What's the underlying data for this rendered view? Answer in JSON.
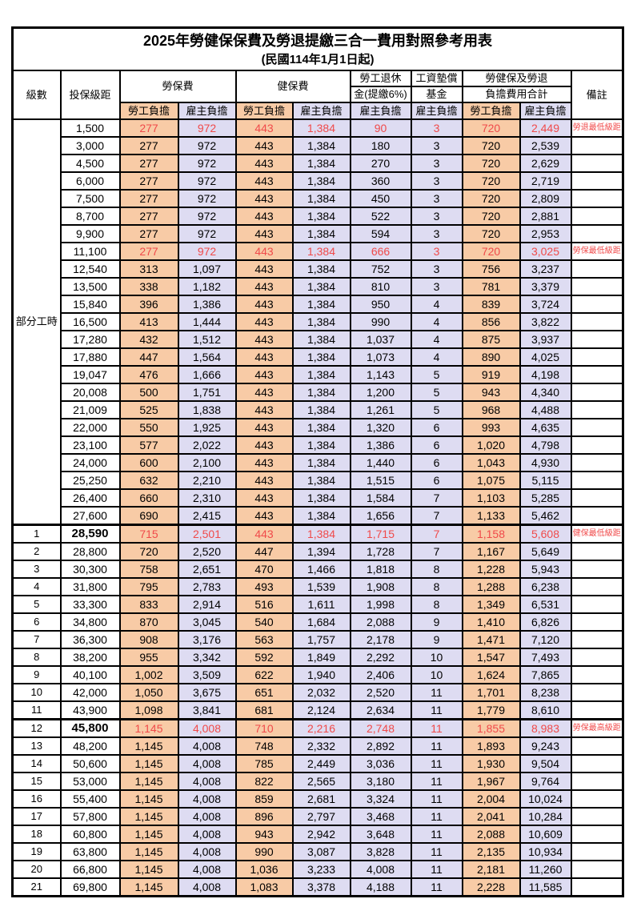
{
  "title": {
    "main": "2025年勞健保保費及勞退提繳三合一費用對照參考用表",
    "sub": "(民國114年1月1日起)"
  },
  "colors": {
    "employee_share_bg": "#F8CBA6",
    "employer_share_bg": "#DEDCF2",
    "highlight_text": "#F04A4A",
    "border": "#000000",
    "background": "#FFFFFF"
  },
  "table": {
    "header": {
      "level": "級數",
      "bracket": "投保級距",
      "labor_fee": "勞保費",
      "health_fee": "健保費",
      "pension_l1": "勞工退休",
      "pension_l2": "金(提繳6%)",
      "wage_fund_l1": "工資墊償",
      "wage_fund_l2": "基金",
      "total_l1": "勞健保及勞退",
      "total_l2": "負擔費用合計",
      "remark": "備註",
      "employee_share": "勞工負擔",
      "employer_share": "雇主負擔"
    },
    "part_time_label": "部分工時",
    "rows": [
      {
        "level": "部分工時",
        "level_rowspan": 23,
        "bracket": "1,500",
        "values": [
          "277",
          "972",
          "443",
          "1,384",
          "90",
          "3",
          "720",
          "2,449"
        ],
        "remark": "勞退最低級距",
        "red": true,
        "bold": false,
        "thick_top": false
      },
      {
        "level": null,
        "bracket": "3,000",
        "values": [
          "277",
          "972",
          "443",
          "1,384",
          "180",
          "3",
          "720",
          "2,539"
        ],
        "remark": "",
        "red": false,
        "bold": false,
        "thick_top": false
      },
      {
        "level": null,
        "bracket": "4,500",
        "values": [
          "277",
          "972",
          "443",
          "1,384",
          "270",
          "3",
          "720",
          "2,629"
        ],
        "remark": "",
        "red": false,
        "bold": false,
        "thick_top": false
      },
      {
        "level": null,
        "bracket": "6,000",
        "values": [
          "277",
          "972",
          "443",
          "1,384",
          "360",
          "3",
          "720",
          "2,719"
        ],
        "remark": "",
        "red": false,
        "bold": false,
        "thick_top": false
      },
      {
        "level": null,
        "bracket": "7,500",
        "values": [
          "277",
          "972",
          "443",
          "1,384",
          "450",
          "3",
          "720",
          "2,809"
        ],
        "remark": "",
        "red": false,
        "bold": false,
        "thick_top": false
      },
      {
        "level": null,
        "bracket": "8,700",
        "values": [
          "277",
          "972",
          "443",
          "1,384",
          "522",
          "3",
          "720",
          "2,881"
        ],
        "remark": "",
        "red": false,
        "bold": false,
        "thick_top": false
      },
      {
        "level": null,
        "bracket": "9,900",
        "values": [
          "277",
          "972",
          "443",
          "1,384",
          "594",
          "3",
          "720",
          "2,953"
        ],
        "remark": "",
        "red": false,
        "bold": false,
        "thick_top": false
      },
      {
        "level": null,
        "bracket": "11,100",
        "values": [
          "277",
          "972",
          "443",
          "1,384",
          "666",
          "3",
          "720",
          "3,025"
        ],
        "remark": "勞保最低級距",
        "red": true,
        "bold": false,
        "thick_top": false
      },
      {
        "level": null,
        "bracket": "12,540",
        "values": [
          "313",
          "1,097",
          "443",
          "1,384",
          "752",
          "3",
          "756",
          "3,237"
        ],
        "remark": "",
        "red": false,
        "bold": false,
        "thick_top": false
      },
      {
        "level": null,
        "bracket": "13,500",
        "values": [
          "338",
          "1,182",
          "443",
          "1,384",
          "810",
          "3",
          "781",
          "3,379"
        ],
        "remark": "",
        "red": false,
        "bold": false,
        "thick_top": false
      },
      {
        "level": null,
        "bracket": "15,840",
        "values": [
          "396",
          "1,386",
          "443",
          "1,384",
          "950",
          "4",
          "839",
          "3,724"
        ],
        "remark": "",
        "red": false,
        "bold": false,
        "thick_top": false
      },
      {
        "level": null,
        "bracket": "16,500",
        "values": [
          "413",
          "1,444",
          "443",
          "1,384",
          "990",
          "4",
          "856",
          "3,822"
        ],
        "remark": "",
        "red": false,
        "bold": false,
        "thick_top": false
      },
      {
        "level": null,
        "bracket": "17,280",
        "values": [
          "432",
          "1,512",
          "443",
          "1,384",
          "1,037",
          "4",
          "875",
          "3,937"
        ],
        "remark": "",
        "red": false,
        "bold": false,
        "thick_top": false
      },
      {
        "level": null,
        "bracket": "17,880",
        "values": [
          "447",
          "1,564",
          "443",
          "1,384",
          "1,073",
          "4",
          "890",
          "4,025"
        ],
        "remark": "",
        "red": false,
        "bold": false,
        "thick_top": false
      },
      {
        "level": null,
        "bracket": "19,047",
        "values": [
          "476",
          "1,666",
          "443",
          "1,384",
          "1,143",
          "5",
          "919",
          "4,198"
        ],
        "remark": "",
        "red": false,
        "bold": false,
        "thick_top": false
      },
      {
        "level": null,
        "bracket": "20,008",
        "values": [
          "500",
          "1,751",
          "443",
          "1,384",
          "1,200",
          "5",
          "943",
          "4,340"
        ],
        "remark": "",
        "red": false,
        "bold": false,
        "thick_top": false
      },
      {
        "level": null,
        "bracket": "21,009",
        "values": [
          "525",
          "1,838",
          "443",
          "1,384",
          "1,261",
          "5",
          "968",
          "4,488"
        ],
        "remark": "",
        "red": false,
        "bold": false,
        "thick_top": false
      },
      {
        "level": null,
        "bracket": "22,000",
        "values": [
          "550",
          "1,925",
          "443",
          "1,384",
          "1,320",
          "6",
          "993",
          "4,635"
        ],
        "remark": "",
        "red": false,
        "bold": false,
        "thick_top": false
      },
      {
        "level": null,
        "bracket": "23,100",
        "values": [
          "577",
          "2,022",
          "443",
          "1,384",
          "1,386",
          "6",
          "1,020",
          "4,798"
        ],
        "remark": "",
        "red": false,
        "bold": false,
        "thick_top": false
      },
      {
        "level": null,
        "bracket": "24,000",
        "values": [
          "600",
          "2,100",
          "443",
          "1,384",
          "1,440",
          "6",
          "1,043",
          "4,930"
        ],
        "remark": "",
        "red": false,
        "bold": false,
        "thick_top": false
      },
      {
        "level": null,
        "bracket": "25,250",
        "values": [
          "632",
          "2,210",
          "443",
          "1,384",
          "1,515",
          "6",
          "1,075",
          "5,115"
        ],
        "remark": "",
        "red": false,
        "bold": false,
        "thick_top": false
      },
      {
        "level": null,
        "bracket": "26,400",
        "values": [
          "660",
          "2,310",
          "443",
          "1,384",
          "1,584",
          "7",
          "1,103",
          "5,285"
        ],
        "remark": "",
        "red": false,
        "bold": false,
        "thick_top": false
      },
      {
        "level": null,
        "bracket": "27,600",
        "values": [
          "690",
          "2,415",
          "443",
          "1,384",
          "1,656",
          "7",
          "1,133",
          "5,462"
        ],
        "remark": "",
        "red": false,
        "bold": false,
        "thick_top": false
      },
      {
        "level": "1",
        "bracket": "28,590",
        "values": [
          "715",
          "2,501",
          "443",
          "1,384",
          "1,715",
          "7",
          "1,158",
          "5,608"
        ],
        "remark": "健保最低級距",
        "red": true,
        "bold": true,
        "thick_top": true
      },
      {
        "level": "2",
        "bracket": "28,800",
        "values": [
          "720",
          "2,520",
          "447",
          "1,394",
          "1,728",
          "7",
          "1,167",
          "5,649"
        ],
        "remark": "",
        "red": false,
        "bold": false,
        "thick_top": false
      },
      {
        "level": "3",
        "bracket": "30,300",
        "values": [
          "758",
          "2,651",
          "470",
          "1,466",
          "1,818",
          "8",
          "1,228",
          "5,943"
        ],
        "remark": "",
        "red": false,
        "bold": false,
        "thick_top": false
      },
      {
        "level": "4",
        "bracket": "31,800",
        "values": [
          "795",
          "2,783",
          "493",
          "1,539",
          "1,908",
          "8",
          "1,288",
          "6,238"
        ],
        "remark": "",
        "red": false,
        "bold": false,
        "thick_top": false
      },
      {
        "level": "5",
        "bracket": "33,300",
        "values": [
          "833",
          "2,914",
          "516",
          "1,611",
          "1,998",
          "8",
          "1,349",
          "6,531"
        ],
        "remark": "",
        "red": false,
        "bold": false,
        "thick_top": false
      },
      {
        "level": "6",
        "bracket": "34,800",
        "values": [
          "870",
          "3,045",
          "540",
          "1,684",
          "2,088",
          "9",
          "1,410",
          "6,826"
        ],
        "remark": "",
        "red": false,
        "bold": false,
        "thick_top": false
      },
      {
        "level": "7",
        "bracket": "36,300",
        "values": [
          "908",
          "3,176",
          "563",
          "1,757",
          "2,178",
          "9",
          "1,471",
          "7,120"
        ],
        "remark": "",
        "red": false,
        "bold": false,
        "thick_top": false
      },
      {
        "level": "8",
        "bracket": "38,200",
        "values": [
          "955",
          "3,342",
          "592",
          "1,849",
          "2,292",
          "10",
          "1,547",
          "7,493"
        ],
        "remark": "",
        "red": false,
        "bold": false,
        "thick_top": false
      },
      {
        "level": "9",
        "bracket": "40,100",
        "values": [
          "1,002",
          "3,509",
          "622",
          "1,940",
          "2,406",
          "10",
          "1,624",
          "7,865"
        ],
        "remark": "",
        "red": false,
        "bold": false,
        "thick_top": false
      },
      {
        "level": "10",
        "bracket": "42,000",
        "values": [
          "1,050",
          "3,675",
          "651",
          "2,032",
          "2,520",
          "11",
          "1,701",
          "8,238"
        ],
        "remark": "",
        "red": false,
        "bold": false,
        "thick_top": false
      },
      {
        "level": "11",
        "bracket": "43,900",
        "values": [
          "1,098",
          "3,841",
          "681",
          "2,124",
          "2,634",
          "11",
          "1,779",
          "8,610"
        ],
        "remark": "",
        "red": false,
        "bold": false,
        "thick_top": false
      },
      {
        "level": "12",
        "bracket": "45,800",
        "values": [
          "1,145",
          "4,008",
          "710",
          "2,216",
          "2,748",
          "11",
          "1,855",
          "8,983"
        ],
        "remark": "勞保最高級距",
        "red": true,
        "bold": true,
        "thick_top": true
      },
      {
        "level": "13",
        "bracket": "48,200",
        "values": [
          "1,145",
          "4,008",
          "748",
          "2,332",
          "2,892",
          "11",
          "1,893",
          "9,243"
        ],
        "remark": "",
        "red": false,
        "bold": false,
        "thick_top": false
      },
      {
        "level": "14",
        "bracket": "50,600",
        "values": [
          "1,145",
          "4,008",
          "785",
          "2,449",
          "3,036",
          "11",
          "1,930",
          "9,504"
        ],
        "remark": "",
        "red": false,
        "bold": false,
        "thick_top": false
      },
      {
        "level": "15",
        "bracket": "53,000",
        "values": [
          "1,145",
          "4,008",
          "822",
          "2,565",
          "3,180",
          "11",
          "1,967",
          "9,764"
        ],
        "remark": "",
        "red": false,
        "bold": false,
        "thick_top": false
      },
      {
        "level": "16",
        "bracket": "55,400",
        "values": [
          "1,145",
          "4,008",
          "859",
          "2,681",
          "3,324",
          "11",
          "2,004",
          "10,024"
        ],
        "remark": "",
        "red": false,
        "bold": false,
        "thick_top": false
      },
      {
        "level": "17",
        "bracket": "57,800",
        "values": [
          "1,145",
          "4,008",
          "896",
          "2,797",
          "3,468",
          "11",
          "2,041",
          "10,284"
        ],
        "remark": "",
        "red": false,
        "bold": false,
        "thick_top": false
      },
      {
        "level": "18",
        "bracket": "60,800",
        "values": [
          "1,145",
          "4,008",
          "943",
          "2,942",
          "3,648",
          "11",
          "2,088",
          "10,609"
        ],
        "remark": "",
        "red": false,
        "bold": false,
        "thick_top": false
      },
      {
        "level": "19",
        "bracket": "63,800",
        "values": [
          "1,145",
          "4,008",
          "990",
          "3,087",
          "3,828",
          "11",
          "2,135",
          "10,934"
        ],
        "remark": "",
        "red": false,
        "bold": false,
        "thick_top": false
      },
      {
        "level": "20",
        "bracket": "66,800",
        "values": [
          "1,145",
          "4,008",
          "1,036",
          "3,233",
          "4,008",
          "11",
          "2,181",
          "11,260"
        ],
        "remark": "",
        "red": false,
        "bold": false,
        "thick_top": false
      },
      {
        "level": "21",
        "bracket": "69,800",
        "values": [
          "1,145",
          "4,008",
          "1,083",
          "3,378",
          "4,188",
          "11",
          "2,228",
          "11,585"
        ],
        "remark": "",
        "red": false,
        "bold": false,
        "thick_top": false
      }
    ]
  }
}
